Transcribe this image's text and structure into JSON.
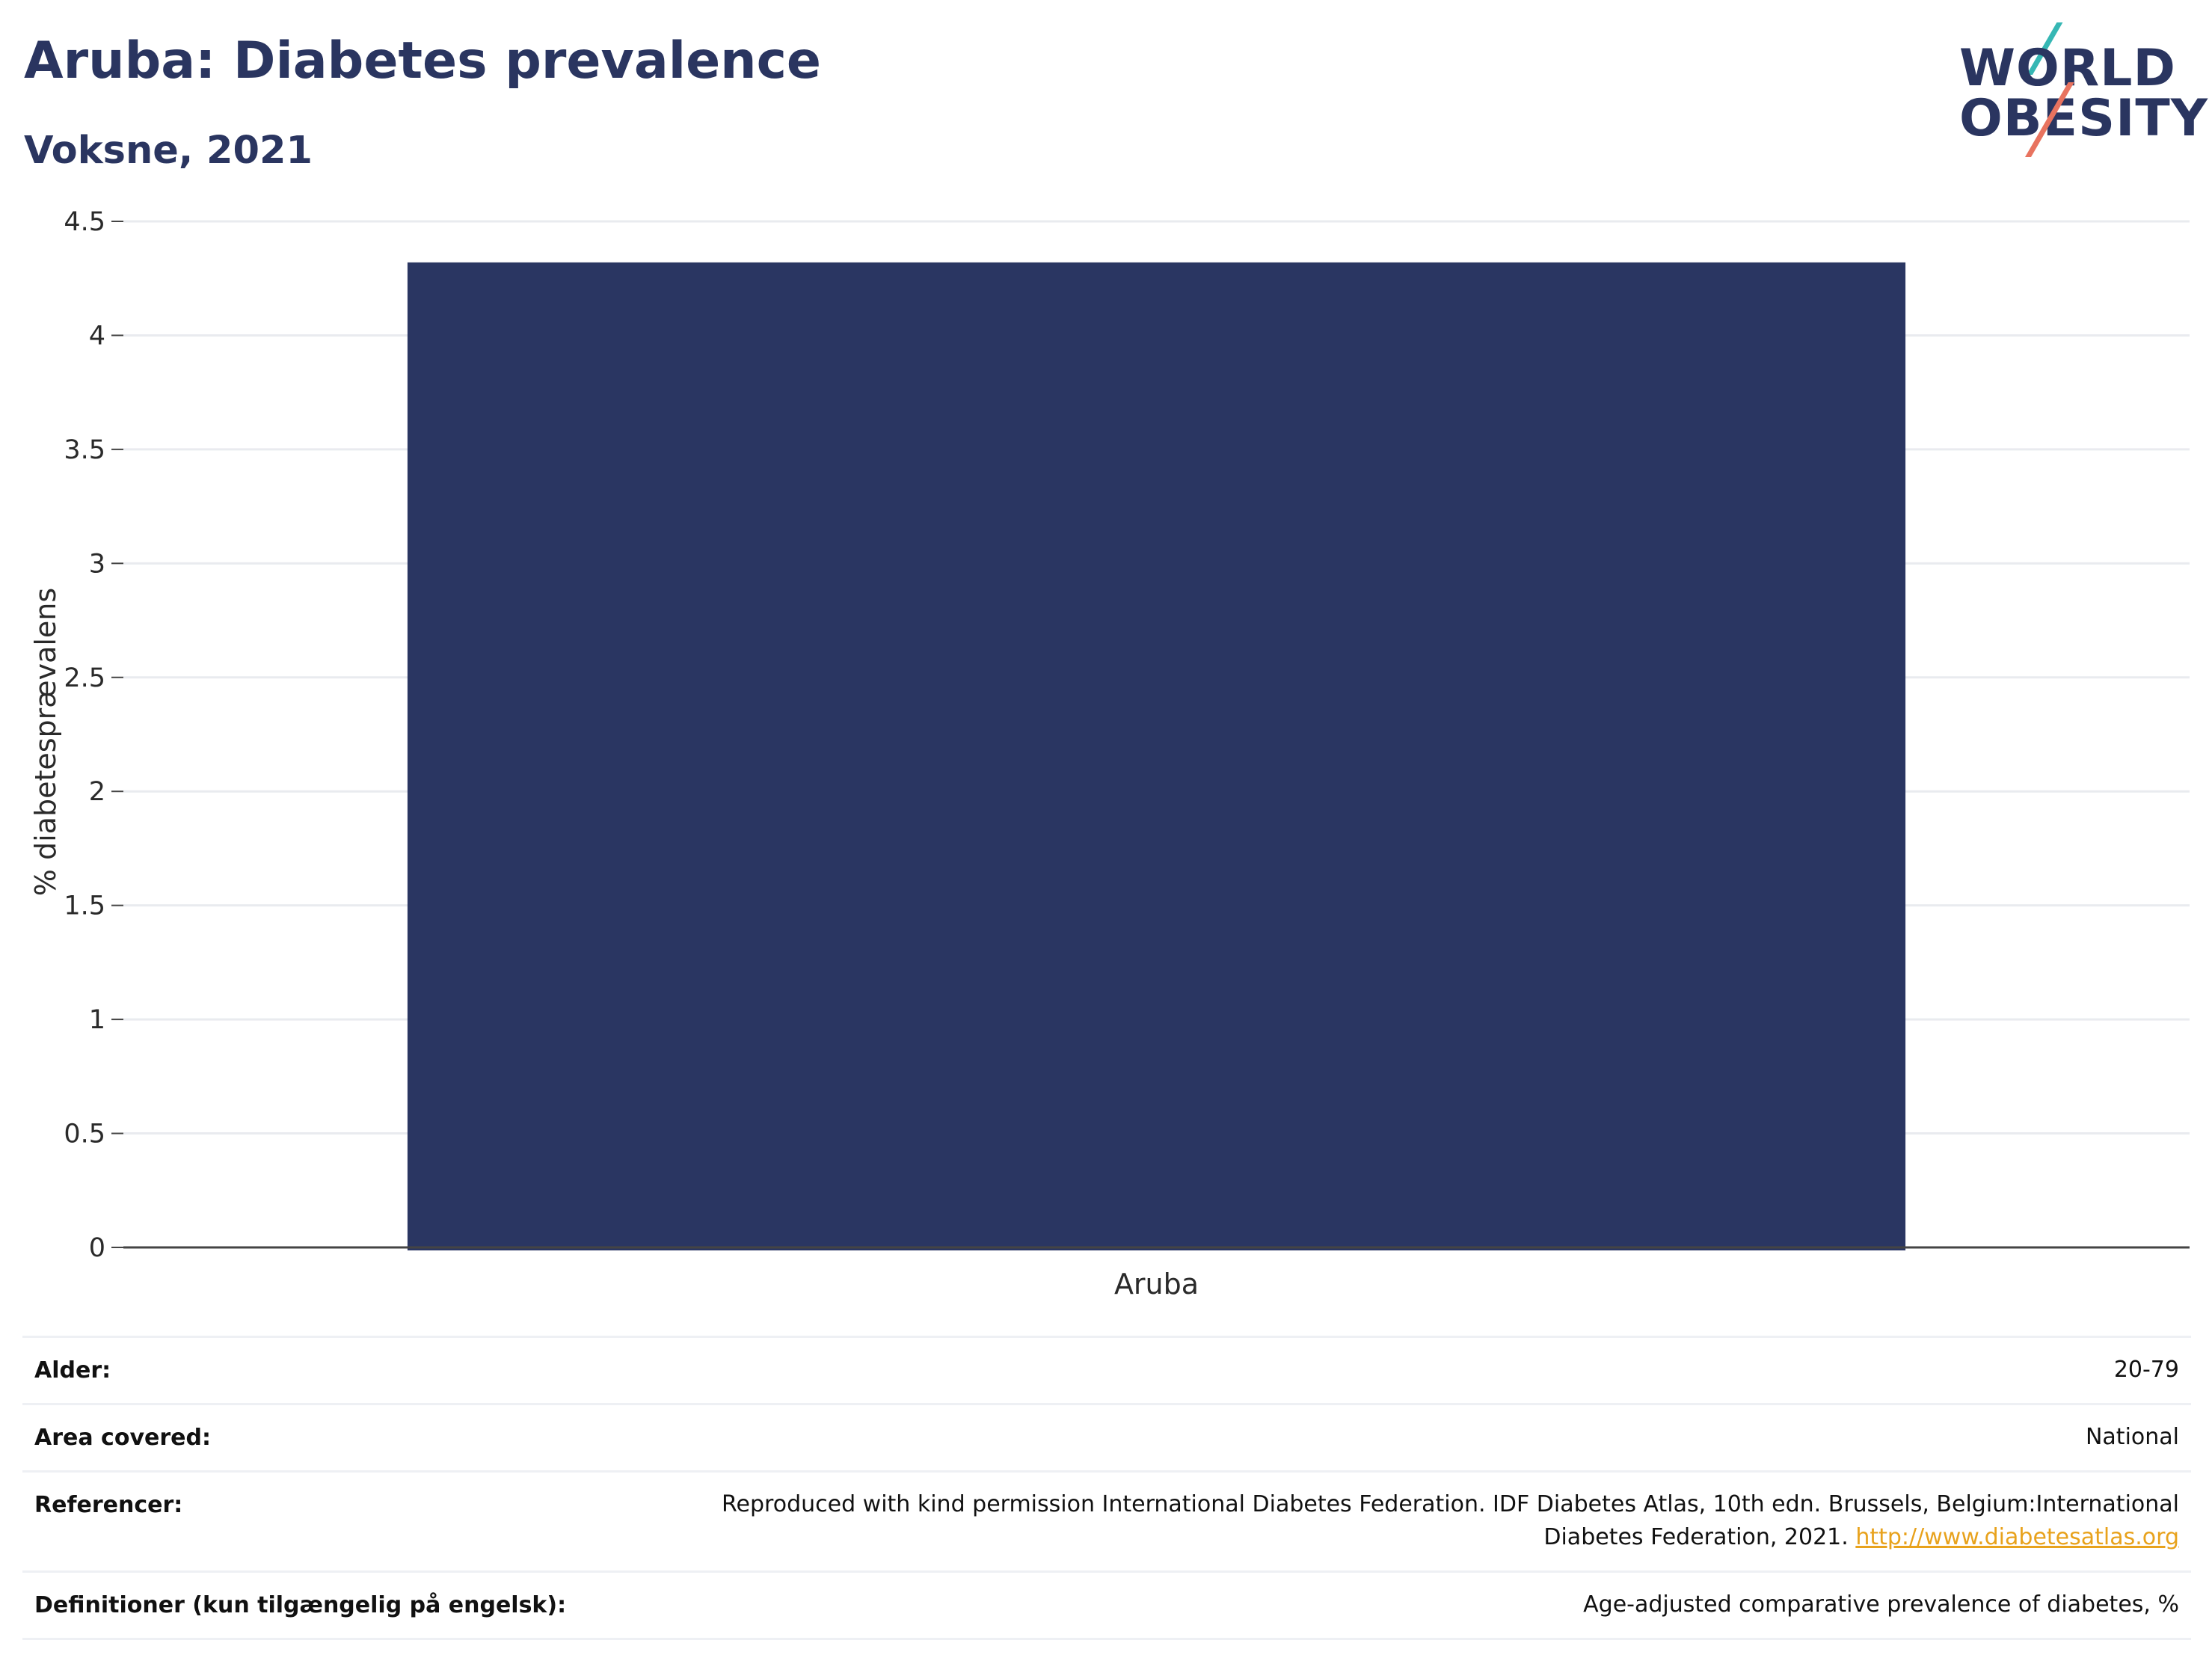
{
  "header": {
    "title": "Aruba: Diabetes prevalence",
    "subtitle": "Voksne, 2021"
  },
  "logo": {
    "line1": "WORLD",
    "line2": "OBESITY",
    "accent_teal": "#36b7b4",
    "accent_red": "#e8735f"
  },
  "chart_data": {
    "type": "bar",
    "categories": [
      "Aruba"
    ],
    "values": [
      4.32
    ],
    "ylabel": "% diabetesprævalens",
    "ylim": [
      0,
      4.5
    ],
    "yticks": [
      0,
      0.5,
      1,
      1.5,
      2,
      2.5,
      3,
      3.5,
      4,
      4.5
    ],
    "ytick_labels": [
      "0",
      "0.5",
      "1",
      "1.5",
      "2",
      "2.5",
      "3",
      "3.5",
      "4",
      "4.5"
    ],
    "bar_color": "#2a3662",
    "grid": true
  },
  "info": {
    "age_label": "Alder:",
    "age_value": "20-79",
    "area_label": "Area covered:",
    "area_value": "National",
    "ref_label": "Referencer:",
    "ref_line1": "Reproduced with kind permission International Diabetes Federation.  IDF Diabetes Atlas, 10th edn. Brussels, Belgium:International",
    "ref_line2": "Diabetes Federation, 2021.",
    "ref_link": "http://www.diabetesatlas.org",
    "def_label": "Definitioner (kun tilgængelig på engelsk):",
    "def_value": "Age-adjusted comparative prevalence of diabetes, %"
  }
}
